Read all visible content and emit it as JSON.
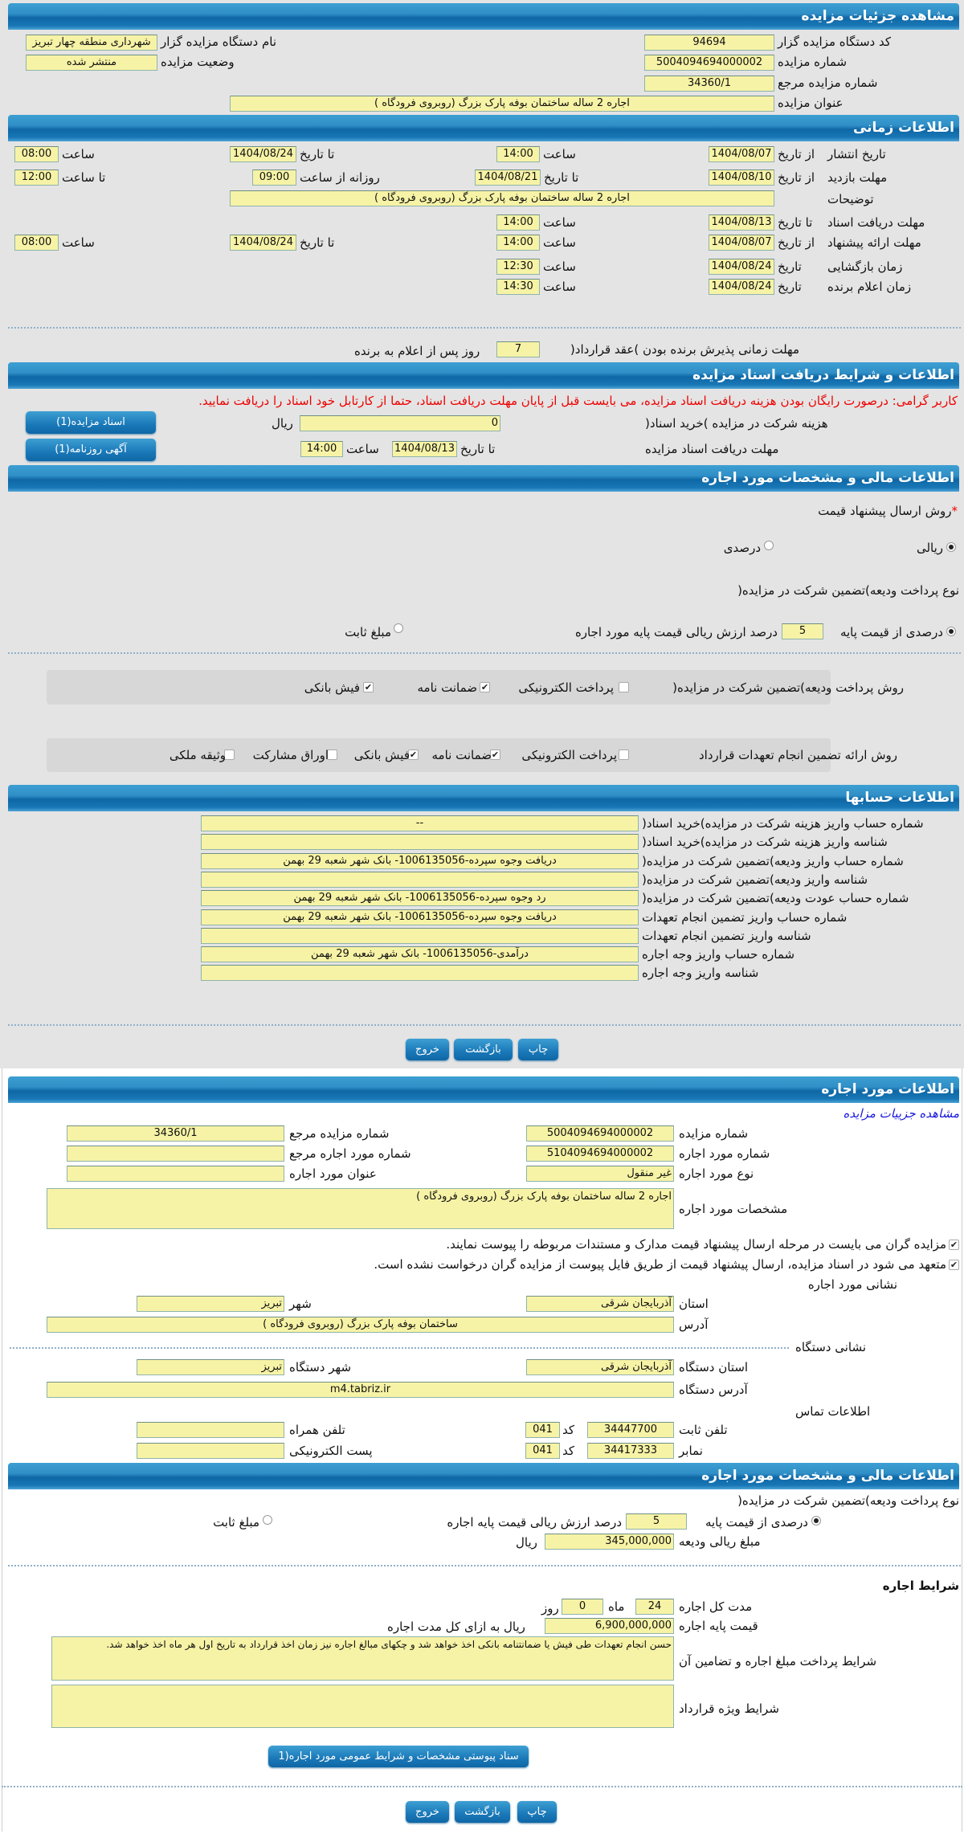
{
  "auction": {
    "title": "مشاهده جزئیات مزایده",
    "org_code_label": "کد دستگاه مزایده گزار",
    "org_code": "94694",
    "org_name_label": "نام دستگاه مزایده گزار",
    "org_name": "شهرداری منطقه چهار تبریز",
    "auction_no_label": "شماره مزایده",
    "auction_no": "5004094694000002",
    "status_label": "وضعیت مزایده",
    "status": "منتشر شده",
    "ref_no_label": "شماره مزایده مرجع",
    "ref_no": "34360/1",
    "title_label": "عنوان مزایده",
    "title_value": "اجاره 2 ساله ساختمان بوفه پارک بزرگ (روبروی فرودگاه )"
  },
  "timing": {
    "title": "اطلاعات زمانی",
    "from_date": "از تاریخ",
    "to_date": "تا تاریخ",
    "hour": "ساعت",
    "to_hour": "تا ساعت",
    "daily_from": "روزانه از ساعت",
    "date": "تاریخ",
    "publish": {
      "label": "تاریخ انتشار",
      "from": "1404/08/07",
      "from_time": "14:00",
      "to": "1404/08/24",
      "to_time": "08:00"
    },
    "visit": {
      "label": "مهلت بازدید",
      "from": "1404/08/10",
      "to": "1404/08/21",
      "daily_from": "09:00",
      "daily_to": "12:00"
    },
    "description_label": "توضیحات",
    "description": "اجاره 2 ساله ساختمان بوفه پارک بزرگ (روبروی فرودگاه )",
    "doc_deadline": {
      "label": "مهلت دریافت اسناد",
      "to": "1404/08/13",
      "time": "14:00"
    },
    "offer": {
      "label": "مهلت ارائه پیشنهاد",
      "from": "1404/08/07",
      "from_time": "14:00",
      "to": "1404/08/24",
      "to_time": "08:00"
    },
    "opening": {
      "label": "زمان بازگشایی",
      "date": "1404/08/24",
      "time": "12:30"
    },
    "winner": {
      "label": "زمان اعلام برنده",
      "date": "1404/08/24",
      "time": "14:30"
    },
    "acceptance_label": "مهلت زمانی پذیرش برنده بودن )عقد قرارداد(",
    "acceptance_days": "7",
    "acceptance_suffix": "روز پس از اعلام به برنده"
  },
  "documents": {
    "title": "اطلاعات و شرایط دریافت اسناد مزایده",
    "notice": "کاربر گرامی: درصورت رایگان بودن هزینه دریافت اسناد مزایده، می بایست قبل از پایان مهلت دریافت اسناد، حتما از کارتابل خود اسناد را دریافت نمایید.",
    "cost_label": "هزینه شرکت در مزایده )خرید اسناد(",
    "cost": "0",
    "currency": "ریال",
    "deadline_label": "مهلت دریافت اسناد مزایده",
    "to_date": "تا تاریخ",
    "deadline_date": "1404/08/13",
    "hour": "ساعت",
    "deadline_time": "14:00",
    "docs_button": "اسناد مزایده(1)",
    "ad_button": "آگهی روزنامه(1)"
  },
  "financial": {
    "title": "اطلاعات مالی و مشخصات مورد اجاره",
    "price_method_label": "روش ارسال پیشنهاد قیمت",
    "required_mark": "*",
    "price_options": [
      {
        "label": "ریالی",
        "selected": true
      },
      {
        "label": "درصدی",
        "selected": false
      }
    ],
    "deposit_type_label": "نوع پرداخت ودیعه)تضمین شرکت در مزایده(",
    "percent_label": "درصدی از قیمت پایه",
    "percent": "5",
    "percent_suffix": "درصد ارزش ریالی قیمت پایه مورد اجاره",
    "fixed_label": "مبلغ ثابت",
    "deposit_percent_selected": true,
    "deposit_method_label": "روش پرداخت ودیعه)تضمین شرکت در مزایده(",
    "deposit_methods": [
      {
        "label": "پرداخت الکترونیکی",
        "checked": false
      },
      {
        "label": "ضمانت نامه",
        "checked": true
      },
      {
        "label": "فیش بانکی",
        "checked": true
      }
    ],
    "guarantee_label": "روش ارائه تضمین انجام تعهدات قرارداد",
    "guarantee_methods": [
      {
        "label": "پرداخت الکترونیکی",
        "checked": false
      },
      {
        "label": "ضمانت نامه",
        "checked": true
      },
      {
        "label": "فیش بانکی",
        "checked": true
      },
      {
        "label": "اوراق مشارکت",
        "checked": false
      },
      {
        "label": "وثیقه ملکی",
        "checked": false
      }
    ]
  },
  "accounts": {
    "title": "اطلاعات حسابها",
    "rows": [
      {
        "label": "شماره حساب واریز هزینه شرکت در مزایده)خرید اسناد(",
        "value": "--"
      },
      {
        "label": "شناسه واریز هزینه شرکت در مزایده)خرید اسناد(",
        "value": ""
      },
      {
        "label": "شماره حساب واریز ودیعه)تضمین شرکت در مزایده(",
        "value": "دریافت وجوه سپرده-1006135056- بانک شهر شعبه 29 بهمن"
      },
      {
        "label": "شناسه واریز ودیعه)تضمین شرکت در مزایده(",
        "value": ""
      },
      {
        "label": "شماره حساب عودت ودیعه)تضمین شرکت در مزایده(",
        "value": "رد وجوه سپرده-1006135056- بانک شهر شعبه 29 بهمن"
      },
      {
        "label": "شماره حساب واریز تضمین انجام تعهدات",
        "value": "دریافت وجوه سپرده-1006135056- بانک شهر شعبه 29 بهمن"
      },
      {
        "label": "شناسه واریز تضمین انجام تعهدات",
        "value": ""
      },
      {
        "label": "شماره حساب واریز وجه اجاره",
        "value": "درآمدی-1006135056- بانک شهر شعبه 29 بهمن"
      },
      {
        "label": "شناسه واریز وجه اجاره",
        "value": ""
      }
    ]
  },
  "actions": {
    "print": "چاپ",
    "back": "بازگشت",
    "exit": "خروج"
  },
  "lease_item": {
    "title": "اطلاعات مورد اجاره",
    "link": "مشاهده جزییات مزایده",
    "auction_no_label": "شماره مزایده",
    "auction_no": "5004094694000002",
    "ref_no_label": "شماره مزایده مرجع",
    "ref_no": "34360/1",
    "item_no_label": "شماره مورد اجاره",
    "item_no": "5104094694000002",
    "item_ref_label": "شماره مورد اجاره مرجع",
    "item_ref": "",
    "item_type_label": "نوع مورد اجاره",
    "item_type": "غیر منقول",
    "item_title_label": "عنوان مورد اجاره",
    "item_title": "",
    "spec_label": "مشخصات مورد اجاره",
    "spec": "اجاره 2 ساله ساختمان بوفه پارک بزرگ (روبروی فرودگاه )",
    "check1": "مزایده گران می بایست در مرحله ارسال پیشنهاد قیمت مدارک و مستندات مربوطه را پیوست نمایند.",
    "check2": "متعهد می شود در اسناد مزایده، ارسال پیشنهاد قیمت از طریق فایل پیوست از مزایده گران درخواست نشده است.",
    "address_title": "نشانی مورد اجاره",
    "province_label": "استان",
    "province": "آذربایجان شرقی",
    "city_label": "شهر",
    "city": "تبریز",
    "address_label": "آدرس",
    "address": "ساختمان بوفه پارک بزرگ (روبروی فرودگاه )",
    "org_address_title": "نشانی دستگاه",
    "org_province_label": "استان دستگاه",
    "org_province": "آذربایجان شرقی",
    "org_city_label": "شهر دستگاه",
    "org_city": "تبریز",
    "org_address_label": "آدرس دستگاه",
    "org_address": "m4.tabriz.ir",
    "contact_title": "اطلاعات تماس",
    "phone_label": "تلفن ثابت",
    "phone": "34447700",
    "code_label": "کد",
    "phone_code": "041",
    "mobile_label": "تلفن همراه",
    "mobile": "",
    "fax_label": "نمابر",
    "fax": "34417333",
    "fax_code": "041",
    "email_label": "پست الکترونیکی",
    "email": ""
  },
  "lease_financial": {
    "title": "اطلاعات مالی و مشخصات مورد اجاره",
    "deposit_type_label": "نوع پرداخت ودیعه)تضمین شرکت در مزایده(",
    "percent_label": "درصدی از قیمت پایه",
    "percent": "5",
    "percent_suffix": "درصد ارزش ریالی قیمت پایه اجاره",
    "fixed_label": "مبلغ ثابت",
    "deposit_amount_label": "مبلغ ریالی ودیعه",
    "deposit_amount": "345,000,000",
    "currency": "ریال",
    "terms_title": "شرایط اجاره",
    "duration_label": "مدت کل اجاره",
    "months": "24",
    "months_label": "ماه",
    "days": "0",
    "days_label": "روز",
    "base_price_label": "قیمت پایه اجاره",
    "base_price": "6,900,000,000",
    "base_price_suffix": "ریال به ازای کل مدت اجاره",
    "payment_terms_label": "شرایط پرداخت مبلغ اجاره و تضامین آن",
    "payment_terms": "حسن انجام تعهدات طی فیش  یا ضمانتنامه بانکی اخذ خواهد شد و چکهای مبالغ اجاره نیز زمان اخذ قرارداد به تاریخ اول هر ماه اخذ خواهد شد.",
    "special_terms_label": "شرایط ویژه قرارداد",
    "special_terms": "",
    "attachment_button": "سناد پیوستی مشخصات و شرایط عمومی مورد اجاره(1"
  }
}
